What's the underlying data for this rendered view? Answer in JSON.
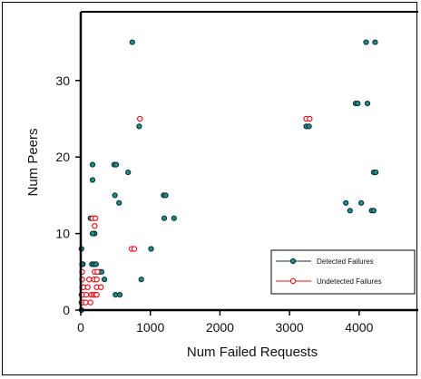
{
  "colors": {
    "detected_fill": "#1f8b8b",
    "detected_edge": "#0a2a2a",
    "undetected_fill": "#ffffff",
    "undetected_edge": "#e8141a",
    "detected_line": "#16245a",
    "undetected_line": "#e8141a"
  },
  "chart_data": {
    "type": "scatter",
    "xlabel": "Num Failed Requests",
    "ylabel": "Num Peers",
    "xlim": [
      0,
      4900
    ],
    "ylim": [
      0,
      37.5
    ],
    "xticks": [
      0,
      1000,
      2000,
      3000,
      4000
    ],
    "yticks": [
      0,
      10,
      20,
      30
    ],
    "grid": false,
    "legend_position": "bottom-right",
    "series": [
      {
        "name": "Detected Failures",
        "marker": "filled-circle",
        "points": [
          [
            740,
            35
          ],
          [
            4100,
            35
          ],
          [
            4230,
            35
          ],
          [
            3950,
            27
          ],
          [
            3980,
            27
          ],
          [
            4120,
            27
          ],
          [
            3240,
            24
          ],
          [
            3280,
            24
          ],
          [
            840,
            24
          ],
          [
            480,
            19
          ],
          [
            510,
            19
          ],
          [
            170,
            19
          ],
          [
            680,
            18
          ],
          [
            4210,
            18
          ],
          [
            4240,
            18
          ],
          [
            170,
            17
          ],
          [
            1190,
            15
          ],
          [
            1220,
            15
          ],
          [
            490,
            15
          ],
          [
            550,
            14
          ],
          [
            3810,
            14
          ],
          [
            4030,
            14
          ],
          [
            3870,
            13
          ],
          [
            4180,
            13
          ],
          [
            4210,
            13
          ],
          [
            1200,
            12
          ],
          [
            1340,
            12
          ],
          [
            140,
            12
          ],
          [
            10,
            8
          ],
          [
            1010,
            8
          ],
          [
            30,
            6
          ],
          [
            20,
            6
          ],
          [
            160,
            6
          ],
          [
            190,
            6
          ],
          [
            220,
            6
          ],
          [
            200,
            10
          ],
          [
            170,
            10
          ],
          [
            280,
            5
          ],
          [
            300,
            5
          ],
          [
            340,
            4
          ],
          [
            870,
            4
          ],
          [
            20,
            4
          ],
          [
            20,
            3
          ],
          [
            10,
            2
          ],
          [
            10,
            1
          ],
          [
            10,
            0
          ],
          [
            500,
            2
          ],
          [
            560,
            2
          ]
        ]
      },
      {
        "name": "Undetected Failures",
        "marker": "open-circle",
        "points": [
          [
            850,
            25
          ],
          [
            3240,
            25
          ],
          [
            3290,
            25
          ],
          [
            170,
            12
          ],
          [
            210,
            12
          ],
          [
            200,
            11
          ],
          [
            730,
            8
          ],
          [
            770,
            8
          ],
          [
            20,
            5
          ],
          [
            200,
            5
          ],
          [
            240,
            5
          ],
          [
            20,
            4
          ],
          [
            120,
            4
          ],
          [
            190,
            4
          ],
          [
            230,
            4
          ],
          [
            40,
            3
          ],
          [
            100,
            3
          ],
          [
            230,
            3
          ],
          [
            290,
            3
          ],
          [
            30,
            2
          ],
          [
            80,
            2
          ],
          [
            150,
            2
          ],
          [
            180,
            2
          ],
          [
            210,
            2
          ],
          [
            230,
            2
          ],
          [
            30,
            1
          ],
          [
            70,
            1
          ],
          [
            140,
            1
          ]
        ]
      }
    ]
  }
}
